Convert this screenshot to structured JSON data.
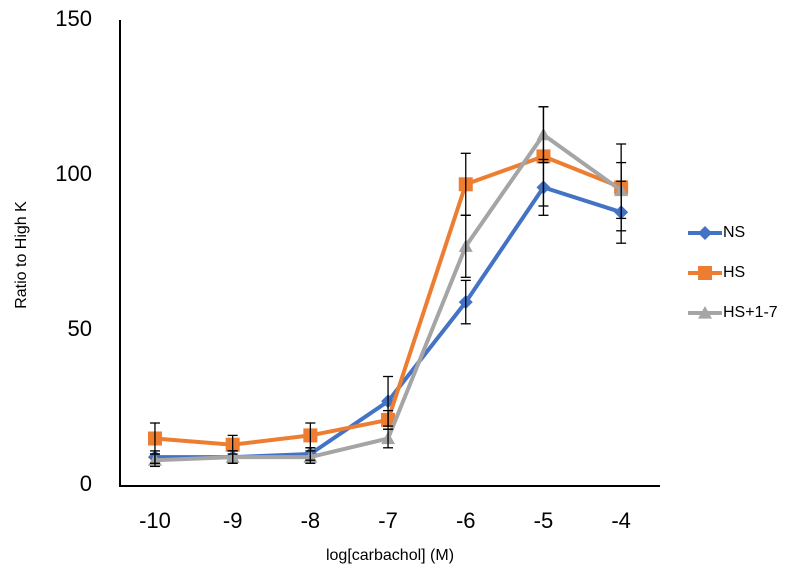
{
  "chart_data": {
    "type": "line",
    "x_label": "log[carbachol] (M)",
    "y_label": "Ratio to High K",
    "x": [
      -10,
      -9,
      -8,
      -7,
      -6,
      -5,
      -4
    ],
    "xlim": [
      -10.45,
      -3.5
    ],
    "xticks": [
      -10,
      -9,
      -8,
      -7,
      -6,
      -5,
      -4
    ],
    "ylim": [
      0,
      150
    ],
    "yticks": [
      0,
      50,
      100,
      150
    ],
    "legend": "right",
    "series": [
      {
        "name": "NS",
        "color": "#4472c4",
        "marker": "diamond",
        "values": [
          9,
          9,
          10,
          27,
          59,
          96,
          88
        ],
        "errors": [
          2,
          2,
          2,
          8,
          7,
          9,
          10
        ]
      },
      {
        "name": "HS",
        "color": "#ed7d31",
        "marker": "square",
        "values": [
          15,
          13,
          16,
          21,
          97,
          106,
          96
        ],
        "errors": [
          5,
          3,
          4,
          3,
          10,
          16,
          14
        ]
      },
      {
        "name": "HS+1-7",
        "color": "#a5a5a5",
        "marker": "triangle",
        "values": [
          8,
          9,
          9,
          15,
          77,
          113,
          95
        ],
        "errors": [
          2,
          2,
          2,
          3,
          10,
          9,
          9
        ]
      }
    ]
  }
}
